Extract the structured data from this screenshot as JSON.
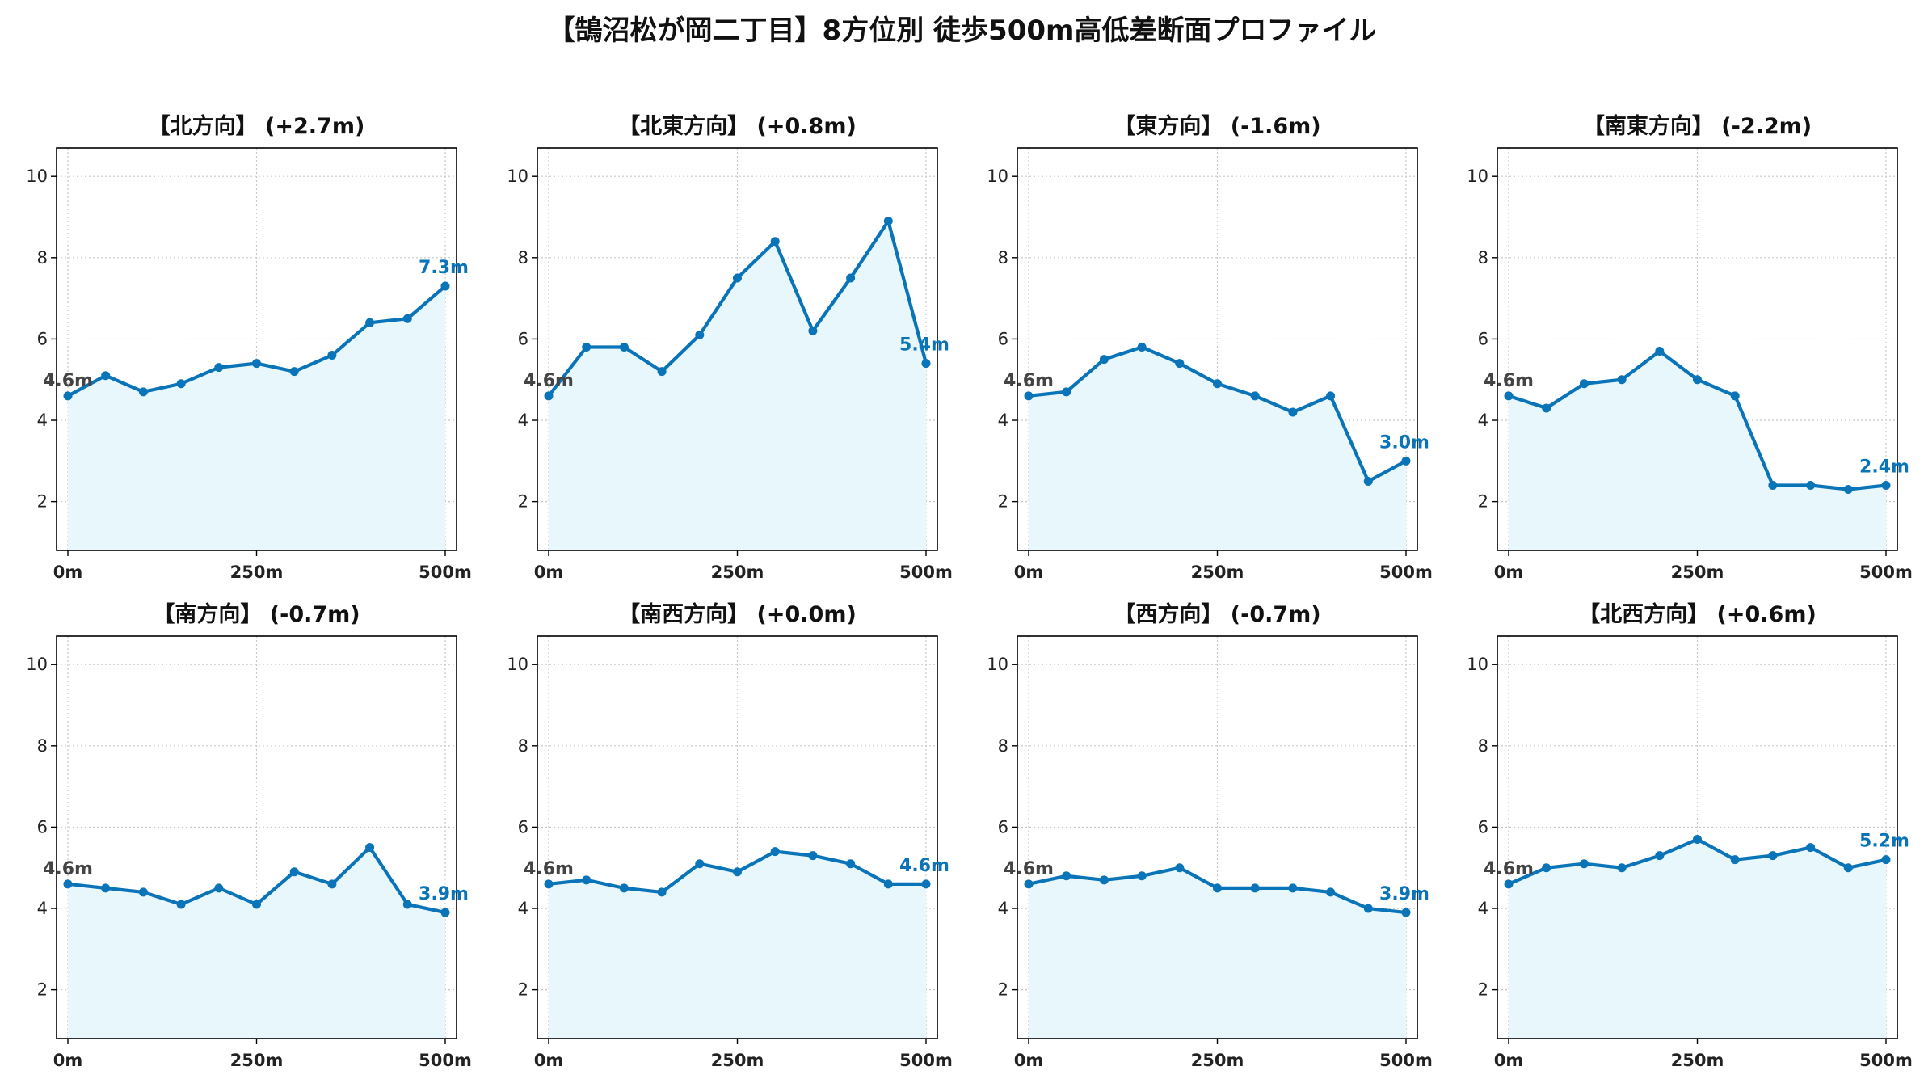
{
  "title": "【鵠沼松が岡二丁目】8方位別 徒歩500m高低差断面プロファイル",
  "colors": {
    "line": "#0a74b8",
    "fill": "#e8f7fc",
    "grid": "#c8c8c8",
    "start_label": "#444444"
  },
  "chart_data": [
    {
      "type": "area",
      "title": "【北方向】 (+2.7m)",
      "x": [
        0,
        50,
        100,
        150,
        200,
        250,
        300,
        350,
        400,
        450,
        500
      ],
      "values": [
        4.6,
        5.1,
        4.7,
        4.9,
        5.3,
        5.4,
        5.2,
        5.6,
        6.4,
        6.5,
        7.3
      ],
      "start_label": "4.6m",
      "end_label": "7.3m",
      "xticks": [
        0,
        250,
        500
      ],
      "xtick_labels": [
        "0m",
        "250m",
        "500m"
      ],
      "yticks": [
        2,
        4,
        6,
        8,
        10
      ],
      "ytick_labels": [
        "2",
        "4",
        "6",
        "8",
        "10"
      ],
      "xlim": [
        -15,
        515
      ],
      "ylim": [
        0.8,
        10.7
      ],
      "grid": true
    },
    {
      "type": "area",
      "title": "【北東方向】 (+0.8m)",
      "x": [
        0,
        50,
        100,
        150,
        200,
        250,
        300,
        350,
        400,
        450,
        500
      ],
      "values": [
        4.6,
        5.8,
        5.8,
        5.2,
        6.1,
        7.5,
        8.4,
        6.2,
        7.5,
        8.9,
        5.4
      ],
      "start_label": "4.6m",
      "end_label": "5.4m",
      "xticks": [
        0,
        250,
        500
      ],
      "xtick_labels": [
        "0m",
        "250m",
        "500m"
      ],
      "yticks": [
        2,
        4,
        6,
        8,
        10
      ],
      "ytick_labels": [
        "2",
        "4",
        "6",
        "8",
        "10"
      ],
      "xlim": [
        -15,
        515
      ],
      "ylim": [
        0.8,
        10.7
      ],
      "grid": true
    },
    {
      "type": "area",
      "title": "【東方向】 (-1.6m)",
      "x": [
        0,
        50,
        100,
        150,
        200,
        250,
        300,
        350,
        400,
        450,
        500
      ],
      "values": [
        4.6,
        4.7,
        5.5,
        5.8,
        5.4,
        4.9,
        4.6,
        4.2,
        4.6,
        2.5,
        3.0
      ],
      "start_label": "4.6m",
      "end_label": "3.0m",
      "xticks": [
        0,
        250,
        500
      ],
      "xtick_labels": [
        "0m",
        "250m",
        "500m"
      ],
      "yticks": [
        2,
        4,
        6,
        8,
        10
      ],
      "ytick_labels": [
        "2",
        "4",
        "6",
        "8",
        "10"
      ],
      "xlim": [
        -15,
        515
      ],
      "ylim": [
        0.8,
        10.7
      ],
      "grid": true
    },
    {
      "type": "area",
      "title": "【南東方向】 (-2.2m)",
      "x": [
        0,
        50,
        100,
        150,
        200,
        250,
        300,
        350,
        400,
        450,
        500
      ],
      "values": [
        4.6,
        4.3,
        4.9,
        5.0,
        5.7,
        5.0,
        4.6,
        2.4,
        2.4,
        2.3,
        2.4
      ],
      "start_label": "4.6m",
      "end_label": "2.4m",
      "xticks": [
        0,
        250,
        500
      ],
      "xtick_labels": [
        "0m",
        "250m",
        "500m"
      ],
      "yticks": [
        2,
        4,
        6,
        8,
        10
      ],
      "ytick_labels": [
        "2",
        "4",
        "6",
        "8",
        "10"
      ],
      "xlim": [
        -15,
        515
      ],
      "ylim": [
        0.8,
        10.7
      ],
      "grid": true
    },
    {
      "type": "area",
      "title": "【南方向】 (-0.7m)",
      "x": [
        0,
        50,
        100,
        150,
        200,
        250,
        300,
        350,
        400,
        450,
        500
      ],
      "values": [
        4.6,
        4.5,
        4.4,
        4.1,
        4.5,
        4.1,
        4.9,
        4.6,
        5.5,
        4.1,
        3.9
      ],
      "start_label": "4.6m",
      "end_label": "3.9m",
      "xticks": [
        0,
        250,
        500
      ],
      "xtick_labels": [
        "0m",
        "250m",
        "500m"
      ],
      "yticks": [
        2,
        4,
        6,
        8,
        10
      ],
      "ytick_labels": [
        "2",
        "4",
        "6",
        "8",
        "10"
      ],
      "xlim": [
        -15,
        515
      ],
      "ylim": [
        0.8,
        10.7
      ],
      "grid": true
    },
    {
      "type": "area",
      "title": "【南西方向】 (+0.0m)",
      "x": [
        0,
        50,
        100,
        150,
        200,
        250,
        300,
        350,
        400,
        450,
        500
      ],
      "values": [
        4.6,
        4.7,
        4.5,
        4.4,
        5.1,
        4.9,
        5.4,
        5.3,
        5.1,
        4.6,
        4.6
      ],
      "start_label": "4.6m",
      "end_label": "4.6m",
      "xticks": [
        0,
        250,
        500
      ],
      "xtick_labels": [
        "0m",
        "250m",
        "500m"
      ],
      "yticks": [
        2,
        4,
        6,
        8,
        10
      ],
      "ytick_labels": [
        "2",
        "4",
        "6",
        "8",
        "10"
      ],
      "xlim": [
        -15,
        515
      ],
      "ylim": [
        0.8,
        10.7
      ],
      "grid": true
    },
    {
      "type": "area",
      "title": "【西方向】 (-0.7m)",
      "x": [
        0,
        50,
        100,
        150,
        200,
        250,
        300,
        350,
        400,
        450,
        500
      ],
      "values": [
        4.6,
        4.8,
        4.7,
        4.8,
        5.0,
        4.5,
        4.5,
        4.5,
        4.4,
        4.0,
        3.9
      ],
      "start_label": "4.6m",
      "end_label": "3.9m",
      "xticks": [
        0,
        250,
        500
      ],
      "xtick_labels": [
        "0m",
        "250m",
        "500m"
      ],
      "yticks": [
        2,
        4,
        6,
        8,
        10
      ],
      "ytick_labels": [
        "2",
        "4",
        "6",
        "8",
        "10"
      ],
      "xlim": [
        -15,
        515
      ],
      "ylim": [
        0.8,
        10.7
      ],
      "grid": true
    },
    {
      "type": "area",
      "title": "【北西方向】 (+0.6m)",
      "x": [
        0,
        50,
        100,
        150,
        200,
        250,
        300,
        350,
        400,
        450,
        500
      ],
      "values": [
        4.6,
        5.0,
        5.1,
        5.0,
        5.3,
        5.7,
        5.2,
        5.3,
        5.5,
        5.0,
        5.2
      ],
      "start_label": "4.6m",
      "end_label": "5.2m",
      "xticks": [
        0,
        250,
        500
      ],
      "xtick_labels": [
        "0m",
        "250m",
        "500m"
      ],
      "yticks": [
        2,
        4,
        6,
        8,
        10
      ],
      "ytick_labels": [
        "2",
        "4",
        "6",
        "8",
        "10"
      ],
      "xlim": [
        -15,
        515
      ],
      "ylim": [
        0.8,
        10.7
      ],
      "grid": true
    }
  ]
}
